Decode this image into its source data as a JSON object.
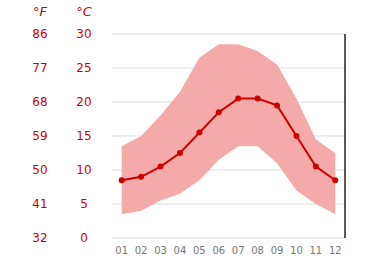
{
  "chart_data": {
    "type": "line",
    "categories": [
      "01",
      "02",
      "03",
      "04",
      "05",
      "06",
      "07",
      "08",
      "09",
      "10",
      "11",
      "12"
    ],
    "series": [
      {
        "type": "band",
        "color": "#f5aaaa",
        "low": [
          3.5,
          4.0,
          5.5,
          6.5,
          8.5,
          11.5,
          13.5,
          13.5,
          11.0,
          7.0,
          5.0,
          3.5
        ],
        "high": [
          13.5,
          15.0,
          18.0,
          21.5,
          26.5,
          28.5,
          28.5,
          27.5,
          25.5,
          20.5,
          14.5,
          12.5
        ]
      },
      {
        "type": "line",
        "color": "#cc0000",
        "marker": "circle",
        "values": [
          8.5,
          9.0,
          10.5,
          12.5,
          15.5,
          18.5,
          20.5,
          20.5,
          19.5,
          15.0,
          10.5,
          8.5
        ]
      }
    ],
    "ylabel": "°C",
    "ylim": [
      0,
      30
    ],
    "yticks": [
      0,
      5,
      10,
      15,
      20,
      25,
      30
    ],
    "y2label": "°F",
    "y2lim": [
      32,
      86
    ],
    "y2ticks": [
      32,
      41,
      50,
      59,
      68,
      77,
      86
    ],
    "grid": true
  }
}
